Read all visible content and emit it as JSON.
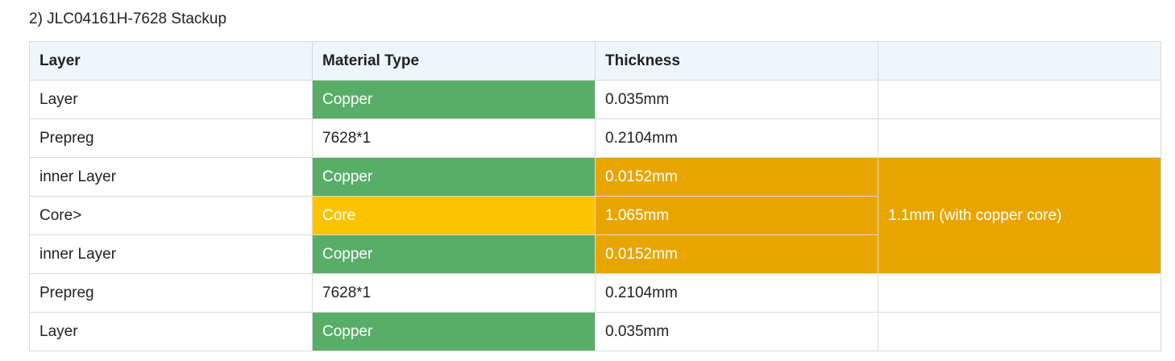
{
  "heading": "2) JLC04161H-7628 Stackup",
  "headers": [
    "Layer",
    "Material Type",
    "Thickness",
    ""
  ],
  "rows": [
    {
      "layer": "Layer",
      "material": "Copper",
      "thickness": "0.035mm"
    },
    {
      "layer": "Prepreg",
      "material": "7628*1",
      "thickness": "0.2104mm"
    },
    {
      "layer": "inner Layer",
      "material": "Copper",
      "thickness": "0.0152mm"
    },
    {
      "layer": "Core>",
      "material": "Core",
      "thickness": "1.065mm"
    },
    {
      "layer": "inner Layer",
      "material": "Copper",
      "thickness": "0.0152mm"
    },
    {
      "layer": "Prepreg",
      "material": "7628*1",
      "thickness": "0.2104mm"
    },
    {
      "layer": "Layer",
      "material": "Copper",
      "thickness": "0.035mm"
    }
  ],
  "core_total": "1.1mm (with copper core)",
  "colors": {
    "copper": "#58ae68",
    "core": "#fcc300",
    "core_group": "#e8a500",
    "header_bg": "#eef6fc",
    "border": "#d9d9d9"
  }
}
